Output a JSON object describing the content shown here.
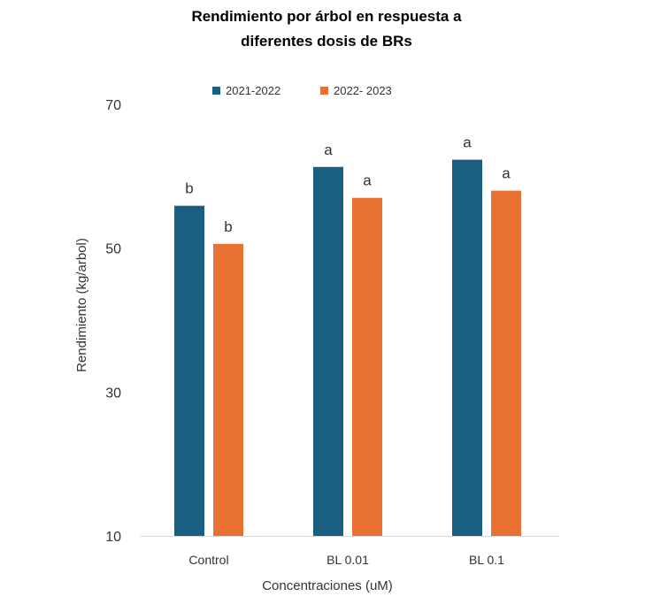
{
  "chart_data": {
    "type": "bar",
    "title": "Rendimiento por árbol en respuesta a diferentes dosis de BRs",
    "title_lines": [
      "Rendimiento por árbol en respuesta a",
      "diferentes dosis de BRs"
    ],
    "xlabel": "Concentraciones (uM)",
    "ylabel": "Rendimiento (kg/arbol)",
    "ylim": [
      10,
      70
    ],
    "yticks": [
      10,
      30,
      50,
      70
    ],
    "categories": [
      "Control",
      "BL 0.01",
      "BL 0.1"
    ],
    "legend_position": "top",
    "grid": false,
    "series": [
      {
        "name": "2021-2022",
        "color": "#1a5f82",
        "values": [
          55.9,
          61.3,
          62.3
        ],
        "labels": [
          "b",
          "a",
          "a"
        ]
      },
      {
        "name": "2022- 2023",
        "color": "#e97132",
        "values": [
          50.6,
          57.0,
          58.0
        ],
        "labels": [
          "b",
          "a",
          "a"
        ]
      }
    ]
  }
}
